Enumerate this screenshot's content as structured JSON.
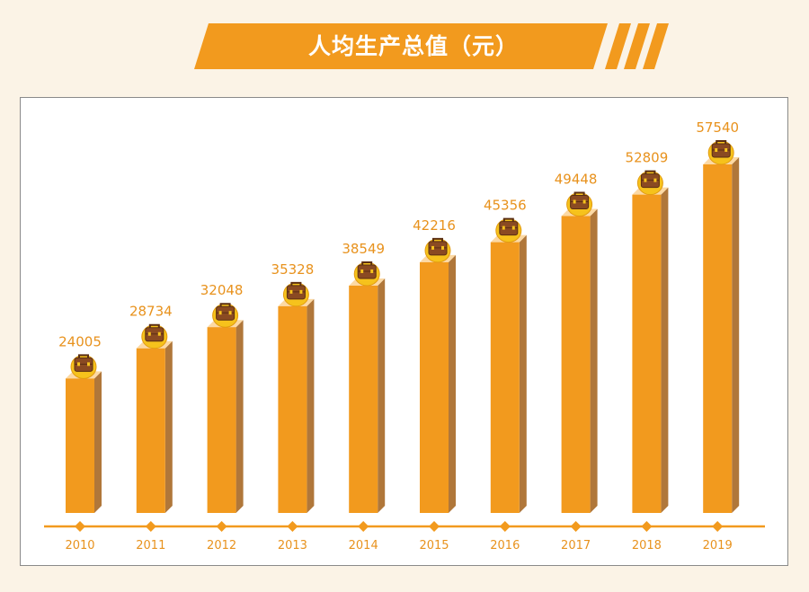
{
  "title": "人均生产总值（元）",
  "colors": {
    "background": "#fbf3e6",
    "banner": "#f29a1e",
    "bar_front": "#f29a1e",
    "bar_side": "#b0773a",
    "bar_top": "#fcd9a4",
    "value_label": "#e8921d",
    "axis": "#f29a1e",
    "tick_label": "#e8921d",
    "icon": "briefcase-coin-icon"
  },
  "chart_data": {
    "type": "bar",
    "categories": [
      "2010",
      "2011",
      "2012",
      "2013",
      "2014",
      "2015",
      "2016",
      "2017",
      "2018",
      "2019"
    ],
    "values": [
      24005,
      28734,
      32048,
      35328,
      38549,
      42216,
      45356,
      49448,
      52809,
      57540
    ],
    "data_labels": [
      "24005",
      "28734",
      "32048",
      "35328",
      "38549",
      "42216",
      "45356",
      "49448",
      "52809",
      "57540"
    ],
    "title": "人均生产总值（元）",
    "xlabel": "",
    "ylabel": "",
    "ylim": [
      0,
      60000
    ],
    "grid": false,
    "legend": "none"
  }
}
